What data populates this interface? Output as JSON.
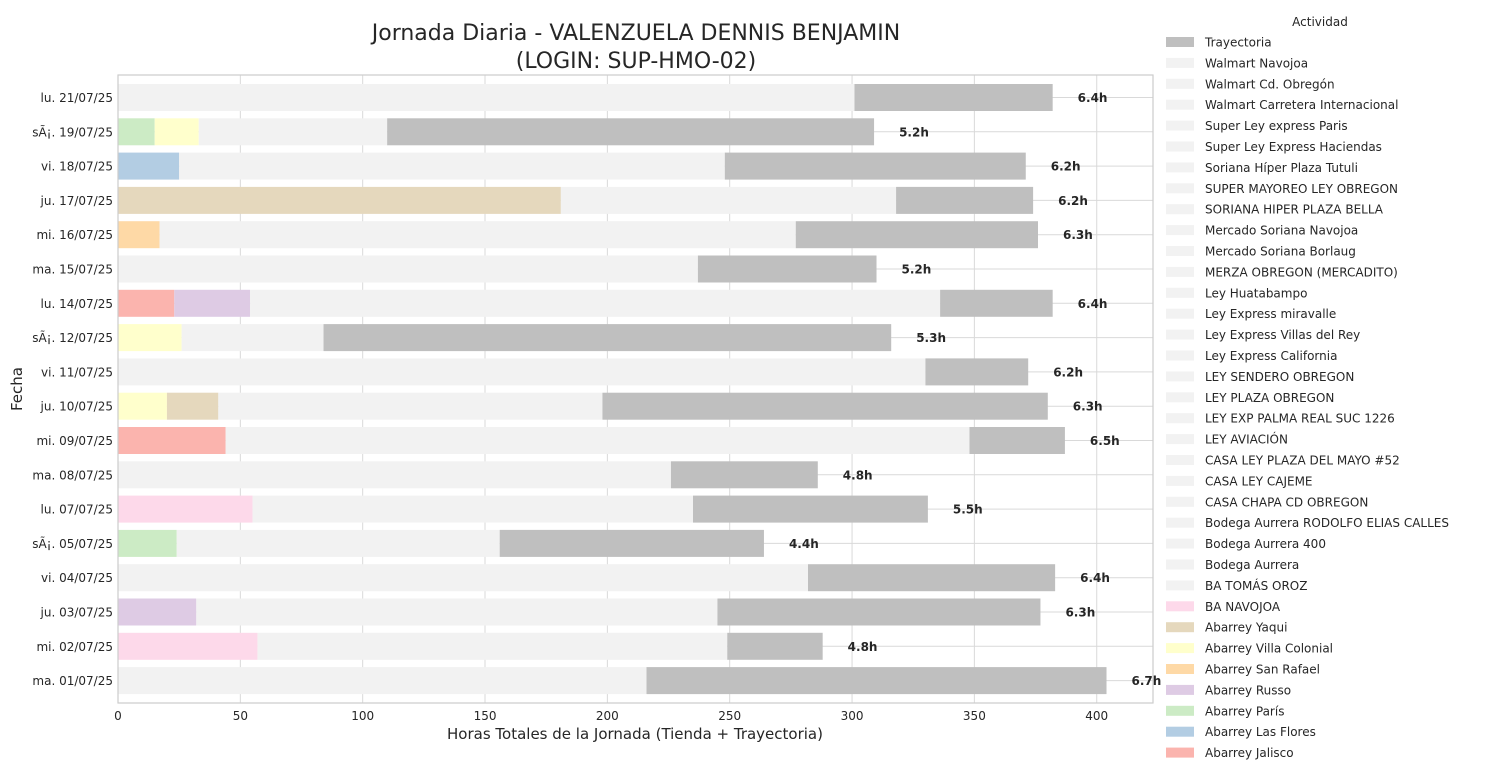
{
  "chart_data": {
    "type": "bar",
    "orientation": "horizontal",
    "stacked": true,
    "title": "Jornada Diaria - VALENZUELA DENNIS BENJAMIN\n(LOGIN: SUP-HMO-02)",
    "xlabel": "Horas Totales de la Jornada (Tienda + Trayectoria)",
    "ylabel": "Fecha",
    "xlim": [
      0,
      423
    ],
    "xticks": [
      0,
      50,
      100,
      150,
      200,
      250,
      300,
      350,
      400
    ],
    "grid": true,
    "legend_placement": "outside-right",
    "legend_title": "Actividad",
    "categories": [
      "lu. 21/07/25",
      "sÃ¡. 19/07/25",
      "vi. 18/07/25",
      "ju. 17/07/25",
      "mi. 16/07/25",
      "ma. 15/07/25",
      "lu. 14/07/25",
      "sÃ¡. 12/07/25",
      "vi. 11/07/25",
      "ju. 10/07/25",
      "mi. 09/07/25",
      "ma. 08/07/25",
      "lu. 07/07/25",
      "sÃ¡. 05/07/25",
      "vi. 04/07/25",
      "ju. 03/07/25",
      "mi. 02/07/25",
      "ma. 01/07/25"
    ],
    "bar_labels": [
      "6.4h",
      "5.2h",
      "6.2h",
      "6.2h",
      "6.3h",
      "5.2h",
      "6.4h",
      "5.3h",
      "6.2h",
      "6.3h",
      "6.5h",
      "4.8h",
      "5.5h",
      "4.4h",
      "6.4h",
      "6.3h",
      "4.8h",
      "6.7h"
    ],
    "legend": [
      {
        "name": "Trayectoria",
        "color": "#bfbfbf"
      },
      {
        "name": "Walmart Navojoa",
        "color": "#f2f2f2"
      },
      {
        "name": "Walmart Cd. Obregón",
        "color": "#f2f2f2"
      },
      {
        "name": "Walmart Carretera Internacional",
        "color": "#f2f2f2"
      },
      {
        "name": "Super Ley express Paris",
        "color": "#f2f2f2"
      },
      {
        "name": "Super Ley Express Haciendas",
        "color": "#f2f2f2"
      },
      {
        "name": "Soriana Híper Plaza Tutuli",
        "color": "#f2f2f2"
      },
      {
        "name": "SUPER MAYOREO LEY OBREGON",
        "color": "#f2f2f2"
      },
      {
        "name": "SORIANA HIPER PLAZA BELLA",
        "color": "#f2f2f2"
      },
      {
        "name": "Mercado Soriana Navojoa",
        "color": "#f2f2f2"
      },
      {
        "name": "Mercado Soriana Borlaug",
        "color": "#f2f2f2"
      },
      {
        "name": "MERZA OBREGON (MERCADITO)",
        "color": "#f2f2f2"
      },
      {
        "name": "Ley Huatabampo",
        "color": "#f2f2f2"
      },
      {
        "name": "Ley Express miravalle",
        "color": "#f2f2f2"
      },
      {
        "name": "Ley Express Villas del Rey",
        "color": "#f2f2f2"
      },
      {
        "name": "Ley Express California",
        "color": "#f2f2f2"
      },
      {
        "name": "LEY SENDERO OBREGON",
        "color": "#f2f2f2"
      },
      {
        "name": "LEY PLAZA OBREGON",
        "color": "#f2f2f2"
      },
      {
        "name": "LEY EXP PALMA REAL SUC 1226",
        "color": "#f2f2f2"
      },
      {
        "name": "LEY AVIACIÓN",
        "color": "#f2f2f2"
      },
      {
        "name": "CASA LEY PLAZA DEL MAYO #52",
        "color": "#f2f2f2"
      },
      {
        "name": "CASA LEY CAJEME",
        "color": "#f2f2f2"
      },
      {
        "name": "CASA CHAPA CD OBREGON",
        "color": "#f2f2f2"
      },
      {
        "name": "Bodega Aurrera RODOLFO ELIAS CALLES",
        "color": "#f2f2f2"
      },
      {
        "name": "Bodega Aurrera 400",
        "color": "#f2f2f2"
      },
      {
        "name": "Bodega Aurrera",
        "color": "#f2f2f2"
      },
      {
        "name": "BA TOMÁS OROZ",
        "color": "#f2f2f2"
      },
      {
        "name": "BA NAVOJOA",
        "color": "#fdd9ea"
      },
      {
        "name": "Abarrey Yaqui",
        "color": "#e5d8bd"
      },
      {
        "name": "Abarrey Villa Colonial",
        "color": "#ffffcc"
      },
      {
        "name": "Abarrey San Rafael",
        "color": "#fed9a6"
      },
      {
        "name": "Abarrey Russo",
        "color": "#decbe4"
      },
      {
        "name": "Abarrey París",
        "color": "#ccebc5"
      },
      {
        "name": "Abarrey Las Flores",
        "color": "#b3cde3"
      },
      {
        "name": "Abarrey Jalisco",
        "color": "#fbb4ae"
      }
    ],
    "segments": [
      [
        {
          "series": "Other stores",
          "start": 0,
          "end": 301
        },
        {
          "series": "Trayectoria",
          "start": 301,
          "end": 382
        }
      ],
      [
        {
          "series": "Abarrey París",
          "start": 0,
          "end": 15
        },
        {
          "series": "Abarrey Villa Colonial",
          "start": 15,
          "end": 33
        },
        {
          "series": "Other stores",
          "start": 33,
          "end": 110
        },
        {
          "series": "Trayectoria",
          "start": 110,
          "end": 309
        }
      ],
      [
        {
          "series": "Abarrey Las Flores",
          "start": 0,
          "end": 25
        },
        {
          "series": "Other stores",
          "start": 25,
          "end": 248
        },
        {
          "series": "Trayectoria",
          "start": 248,
          "end": 371
        }
      ],
      [
        {
          "series": "Abarrey Yaqui",
          "start": 0,
          "end": 181
        },
        {
          "series": "Other stores",
          "start": 181,
          "end": 318
        },
        {
          "series": "Trayectoria",
          "start": 318,
          "end": 374
        }
      ],
      [
        {
          "series": "Abarrey San Rafael",
          "start": 0,
          "end": 17
        },
        {
          "series": "Other stores",
          "start": 17,
          "end": 277
        },
        {
          "series": "Trayectoria",
          "start": 277,
          "end": 376
        }
      ],
      [
        {
          "series": "Other stores",
          "start": 0,
          "end": 237
        },
        {
          "series": "Trayectoria",
          "start": 237,
          "end": 310
        }
      ],
      [
        {
          "series": "Abarrey Jalisco",
          "start": 0,
          "end": 23
        },
        {
          "series": "Abarrey Russo",
          "start": 23,
          "end": 54
        },
        {
          "series": "Other stores",
          "start": 54,
          "end": 336
        },
        {
          "series": "Trayectoria",
          "start": 336,
          "end": 382
        }
      ],
      [
        {
          "series": "Abarrey Villa Colonial",
          "start": 0,
          "end": 26
        },
        {
          "series": "Other stores",
          "start": 26,
          "end": 84
        },
        {
          "series": "Trayectoria",
          "start": 84,
          "end": 316
        }
      ],
      [
        {
          "series": "Other stores",
          "start": 0,
          "end": 330
        },
        {
          "series": "Trayectoria",
          "start": 330,
          "end": 372
        }
      ],
      [
        {
          "series": "Abarrey Villa Colonial",
          "start": 0,
          "end": 20
        },
        {
          "series": "Abarrey Yaqui",
          "start": 20,
          "end": 41
        },
        {
          "series": "Other stores",
          "start": 41,
          "end": 198
        },
        {
          "series": "Trayectoria",
          "start": 198,
          "end": 380
        }
      ],
      [
        {
          "series": "Abarrey Jalisco",
          "start": 0,
          "end": 44
        },
        {
          "series": "Other stores",
          "start": 44,
          "end": 348
        },
        {
          "series": "Trayectoria",
          "start": 348,
          "end": 387
        }
      ],
      [
        {
          "series": "Other stores",
          "start": 0,
          "end": 226
        },
        {
          "series": "Trayectoria",
          "start": 226,
          "end": 286
        }
      ],
      [
        {
          "series": "BA NAVOJOA",
          "start": 0,
          "end": 55
        },
        {
          "series": "Other stores",
          "start": 55,
          "end": 235
        },
        {
          "series": "Trayectoria",
          "start": 235,
          "end": 331
        }
      ],
      [
        {
          "series": "Abarrey París",
          "start": 0,
          "end": 24
        },
        {
          "series": "Other stores",
          "start": 24,
          "end": 156
        },
        {
          "series": "Trayectoria",
          "start": 156,
          "end": 264
        }
      ],
      [
        {
          "series": "Other stores",
          "start": 0,
          "end": 282
        },
        {
          "series": "Trayectoria",
          "start": 282,
          "end": 383
        }
      ],
      [
        {
          "series": "Abarrey Russo",
          "start": 0,
          "end": 32
        },
        {
          "series": "Other stores",
          "start": 32,
          "end": 245
        },
        {
          "series": "Trayectoria",
          "start": 245,
          "end": 377
        }
      ],
      [
        {
          "series": "BA NAVOJOA",
          "start": 0,
          "end": 57
        },
        {
          "series": "Other stores",
          "start": 57,
          "end": 249
        },
        {
          "series": "Trayectoria",
          "start": 249,
          "end": 288
        }
      ],
      [
        {
          "series": "Other stores",
          "start": 0,
          "end": 216
        },
        {
          "series": "Trayectoria",
          "start": 216,
          "end": 404
        }
      ]
    ]
  }
}
